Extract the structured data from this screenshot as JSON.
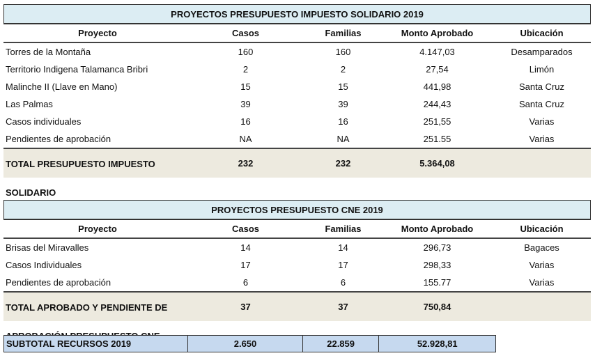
{
  "table1": {
    "title": "PROYECTOS PRESUPUESTO IMPUESTO SOLIDARIO 2019",
    "headers": [
      "Proyecto",
      "Casos",
      "Familias",
      "Monto Aprobado",
      "Ubicación"
    ],
    "rows": [
      [
        "Torres de la Montaña",
        "160",
        "160",
        "4.147,03",
        "Desamparados"
      ],
      [
        "Territorio Indigena Talamanca Bribri",
        "2",
        "2",
        "27,54",
        "Limón"
      ],
      [
        "Malinche II (Llave en Mano)",
        "15",
        "15",
        "441,98",
        "Santa Cruz"
      ],
      [
        "Las Palmas",
        "39",
        "39",
        "244,43",
        "Santa Cruz"
      ],
      [
        " Casos individuales",
        "16",
        "16",
        "251,55",
        "Varias"
      ],
      [
        " Pendientes de aprobación",
        "NA",
        "NA",
        "251.55",
        "Varias"
      ]
    ],
    "total": {
      "label_line1": "TOTAL PRESUPUESTO IMPUESTO",
      "label_line2": "SOLIDARIO",
      "casos": "232",
      "familias": "232",
      "monto": "5.364,08"
    }
  },
  "table2": {
    "title": "PROYECTOS PRESUPUESTO CNE 2019",
    "headers": [
      "Proyecto",
      "Casos",
      "Familias",
      "Monto Aprobado",
      "Ubicación"
    ],
    "rows": [
      [
        " Brisas del Miravalles",
        "14",
        "14",
        "296,73",
        "Bagaces"
      ],
      [
        " Casos Individuales",
        "17",
        "17",
        "298,33",
        "Varias"
      ],
      [
        "Pendientes de aprobación",
        "6",
        "6",
        "155.77",
        "Varias"
      ]
    ],
    "total": {
      "label_line1": "TOTAL APROBADO Y PENDIENTE DE",
      "label_line2": "APROBACIÓN PRESUPUESTO CNE",
      "casos": "37",
      "familias": "37",
      "monto": "750,84"
    }
  },
  "subtotal": {
    "label": "SUBTOTAL RECURSOS 2019",
    "casos": "2.650",
    "familias": "22.859",
    "monto": "52.928,81"
  }
}
